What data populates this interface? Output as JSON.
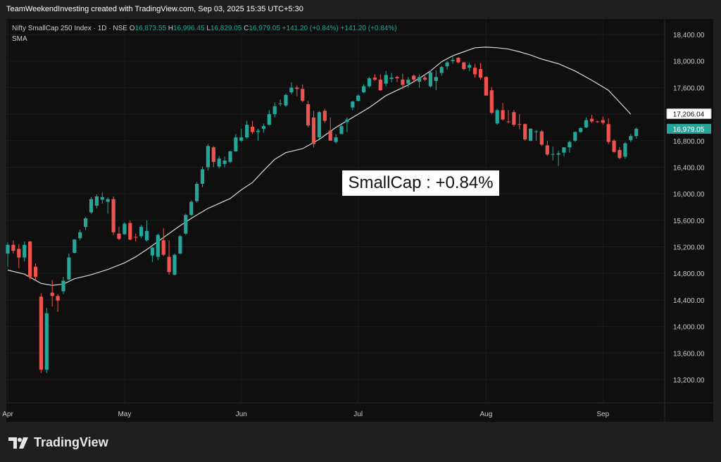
{
  "header": {
    "attribution": "TeamWeekendInvesting created with TradingView.com, Sep 03, 2025 15:35 UTC+5:30"
  },
  "legend": {
    "symbol": "Nifty SmallCap 250 Index · 1D · NSE",
    "open_label": "O",
    "open": "16,873.55",
    "high_label": "H",
    "high": "16,996.45",
    "low_label": "L",
    "low": "16,829.05",
    "close_label": "C",
    "close": "16,979.05",
    "change": "+141.20 (+0.84%)",
    "change2": "+141.20 (+0.84%)",
    "indicator": "SMA"
  },
  "annotation": {
    "text": "SmallCap : +0.84%"
  },
  "footer": {
    "brand": "TradingView"
  },
  "colors": {
    "up": "#26a69a",
    "down": "#ef5350",
    "sma": "#d9d9d9",
    "price_tag": "#26a69a",
    "sma_tag": "#ffffff"
  },
  "chart_data": {
    "type": "candlestick",
    "ylim": [
      12900,
      18600
    ],
    "y_ticks": [
      "18,400.00",
      "18,000.00",
      "17,600.00",
      "17,200.00",
      "16,800.00",
      "16,400.00",
      "16,000.00",
      "15,600.00",
      "15,200.00",
      "14,800.00",
      "14,400.00",
      "14,000.00",
      "13,600.00",
      "13,200.00"
    ],
    "y_tick_values": [
      18400,
      18000,
      17600,
      17200,
      16800,
      16400,
      16000,
      15600,
      15200,
      14800,
      14400,
      14000,
      13600,
      13200
    ],
    "x_ticks": [
      {
        "label": "Apr",
        "index": 0
      },
      {
        "label": "May",
        "index": 21
      },
      {
        "label": "Jun",
        "index": 42
      },
      {
        "label": "Jul",
        "index": 63
      },
      {
        "label": "Aug",
        "index": 86
      },
      {
        "label": "Sep",
        "index": 107
      }
    ],
    "price_tags": [
      {
        "name": "sma",
        "label": "17,206.04",
        "value": 17206
      },
      {
        "name": "last",
        "label": "16,979.05",
        "value": 16979
      }
    ],
    "candles": [
      [
        15100,
        15270,
        14900,
        15230
      ],
      [
        15230,
        15300,
        15100,
        15140
      ],
      [
        15170,
        15240,
        14880,
        15040
      ],
      [
        15040,
        15280,
        14980,
        15230
      ],
      [
        15280,
        15290,
        14710,
        14750
      ],
      [
        14900,
        14950,
        14700,
        14750
      ],
      [
        14450,
        14500,
        13300,
        13350
      ],
      [
        13350,
        14280,
        13300,
        14200
      ],
      [
        14510,
        14700,
        14300,
        14460
      ],
      [
        14460,
        14490,
        14220,
        14390
      ],
      [
        14530,
        14750,
        14490,
        14690
      ],
      [
        14710,
        15100,
        14700,
        15040
      ],
      [
        15110,
        15320,
        15100,
        15310
      ],
      [
        15330,
        15460,
        15300,
        15420
      ],
      [
        15500,
        15650,
        15450,
        15630
      ],
      [
        15720,
        15950,
        15700,
        15920
      ],
      [
        15820,
        15990,
        15780,
        15960
      ],
      [
        15910,
        16020,
        15850,
        15950
      ],
      [
        15880,
        15950,
        15700,
        15920
      ],
      [
        15920,
        15960,
        15380,
        15420
      ],
      [
        15400,
        15500,
        15300,
        15320
      ],
      [
        15390,
        15570,
        15380,
        15550
      ],
      [
        15560,
        15600,
        15300,
        15310
      ],
      [
        15350,
        15400,
        15280,
        15340
      ],
      [
        15360,
        15530,
        15330,
        15500
      ],
      [
        15300,
        15600,
        15280,
        15440
      ],
      [
        15070,
        15200,
        14970,
        15190
      ],
      [
        15050,
        15400,
        15000,
        15380
      ],
      [
        15300,
        15480,
        15060,
        15080
      ],
      [
        15050,
        15300,
        14780,
        14820
      ],
      [
        14780,
        15100,
        14770,
        15080
      ],
      [
        15100,
        15380,
        15090,
        15360
      ],
      [
        15400,
        15700,
        15380,
        15680
      ],
      [
        15680,
        15900,
        15670,
        15880
      ],
      [
        15890,
        16180,
        15870,
        16150
      ],
      [
        16150,
        16410,
        16100,
        16370
      ],
      [
        16400,
        16750,
        16350,
        16720
      ],
      [
        16700,
        16720,
        16400,
        16480
      ],
      [
        16410,
        16570,
        16380,
        16530
      ],
      [
        16450,
        16560,
        16400,
        16500
      ],
      [
        16480,
        16650,
        16460,
        16640
      ],
      [
        16640,
        16900,
        16630,
        16850
      ],
      [
        16800,
        16980,
        16780,
        16850
      ],
      [
        16850,
        17100,
        16830,
        17040
      ],
      [
        17010,
        17100,
        16900,
        16930
      ],
      [
        16930,
        16980,
        16800,
        16950
      ],
      [
        16980,
        17060,
        16920,
        17020
      ],
      [
        17040,
        17260,
        17030,
        17200
      ],
      [
        17200,
        17380,
        17150,
        17320
      ],
      [
        17350,
        17420,
        17320,
        17360
      ],
      [
        17330,
        17510,
        17310,
        17490
      ],
      [
        17530,
        17680,
        17500,
        17600
      ],
      [
        17600,
        17630,
        17470,
        17580
      ],
      [
        17580,
        17650,
        17380,
        17400
      ],
      [
        17350,
        17400,
        17000,
        17030
      ],
      [
        17150,
        17250,
        16700,
        16750
      ],
      [
        16850,
        17250,
        16830,
        17230
      ],
      [
        17250,
        17280,
        17070,
        17100
      ],
      [
        16950,
        17150,
        16800,
        16800
      ],
      [
        16780,
        16900,
        16760,
        16850
      ],
      [
        16900,
        17040,
        16900,
        17020
      ],
      [
        17080,
        17150,
        16930,
        17120
      ],
      [
        17300,
        17400,
        17260,
        17390
      ],
      [
        17400,
        17500,
        17390,
        17480
      ],
      [
        17530,
        17650,
        17520,
        17620
      ],
      [
        17620,
        17760,
        17600,
        17740
      ],
      [
        17750,
        17800,
        17700,
        17720
      ],
      [
        17720,
        17800,
        17550,
        17560
      ],
      [
        17660,
        17850,
        17620,
        17790
      ],
      [
        17730,
        17820,
        17680,
        17750
      ],
      [
        17760,
        17780,
        17680,
        17740
      ],
      [
        17720,
        17810,
        17580,
        17640
      ],
      [
        17660,
        17760,
        17600,
        17720
      ],
      [
        17780,
        17800,
        17680,
        17720
      ],
      [
        17690,
        17800,
        17600,
        17760
      ],
      [
        17750,
        17800,
        17700,
        17720
      ],
      [
        17620,
        17860,
        17600,
        17830
      ],
      [
        17700,
        17860,
        17560,
        17760
      ],
      [
        17820,
        17930,
        17780,
        17910
      ],
      [
        17920,
        18000,
        17870,
        17980
      ],
      [
        18000,
        18080,
        17960,
        18020
      ],
      [
        18050,
        18060,
        17960,
        17980
      ],
      [
        17980,
        17990,
        17860,
        17880
      ],
      [
        17900,
        17970,
        17850,
        17940
      ],
      [
        17900,
        17960,
        17750,
        17800
      ],
      [
        17880,
        17970,
        17720,
        17750
      ],
      [
        17760,
        17770,
        17480,
        17480
      ],
      [
        17560,
        17610,
        17200,
        17220
      ],
      [
        17060,
        17280,
        17040,
        17260
      ],
      [
        17260,
        17370,
        17100,
        17120
      ],
      [
        17090,
        17260,
        17060,
        17080
      ],
      [
        17230,
        17260,
        17010,
        17040
      ],
      [
        17050,
        17200,
        16970,
        17040
      ],
      [
        17050,
        17060,
        16800,
        16820
      ],
      [
        16800,
        16990,
        16790,
        16980
      ],
      [
        16930,
        16960,
        16800,
        16940
      ],
      [
        16940,
        16960,
        16720,
        16740
      ],
      [
        16730,
        16800,
        16570,
        16590
      ],
      [
        16600,
        16710,
        16500,
        16600
      ],
      [
        16590,
        16650,
        16420,
        16610
      ],
      [
        16620,
        16700,
        16560,
        16700
      ],
      [
        16700,
        16800,
        16620,
        16780
      ],
      [
        16800,
        16940,
        16780,
        16930
      ],
      [
        16930,
        17000,
        16920,
        16990
      ],
      [
        17000,
        17150,
        16990,
        17110
      ],
      [
        17130,
        17190,
        17070,
        17090
      ],
      [
        17090,
        17100,
        17070,
        17080
      ],
      [
        17110,
        17160,
        17040,
        17070
      ],
      [
        17050,
        17140,
        16750,
        16780
      ],
      [
        16800,
        16820,
        16620,
        16630
      ],
      [
        16660,
        16700,
        16520,
        16540
      ],
      [
        16560,
        16780,
        16530,
        16760
      ],
      [
        16810,
        16900,
        16780,
        16870
      ],
      [
        16870,
        17000,
        16830,
        16980
      ]
    ],
    "sma": [
      [
        0,
        14850
      ],
      [
        3,
        14790
      ],
      [
        6,
        14650
      ],
      [
        8,
        14620
      ],
      [
        10,
        14640
      ],
      [
        12,
        14720
      ],
      [
        15,
        14780
      ],
      [
        18,
        14860
      ],
      [
        21,
        14960
      ],
      [
        23,
        15050
      ],
      [
        25,
        15160
      ],
      [
        28,
        15340
      ],
      [
        31,
        15520
      ],
      [
        33,
        15630
      ],
      [
        36,
        15780
      ],
      [
        40,
        15930
      ],
      [
        42,
        16060
      ],
      [
        44,
        16170
      ],
      [
        46,
        16350
      ],
      [
        48,
        16520
      ],
      [
        50,
        16620
      ],
      [
        53,
        16680
      ],
      [
        56,
        16820
      ],
      [
        59,
        17000
      ],
      [
        62,
        17150
      ],
      [
        65,
        17300
      ],
      [
        68,
        17480
      ],
      [
        70,
        17560
      ],
      [
        72,
        17640
      ],
      [
        74,
        17740
      ],
      [
        76,
        17850
      ],
      [
        78,
        17990
      ],
      [
        80,
        18080
      ],
      [
        82,
        18140
      ],
      [
        84,
        18200
      ],
      [
        86,
        18210
      ],
      [
        88,
        18200
      ],
      [
        90,
        18180
      ],
      [
        92,
        18140
      ],
      [
        94,
        18090
      ],
      [
        96,
        18030
      ],
      [
        99,
        17960
      ],
      [
        102,
        17850
      ],
      [
        105,
        17710
      ],
      [
        108,
        17560
      ],
      [
        110,
        17380
      ],
      [
        112,
        17200
      ]
    ]
  }
}
